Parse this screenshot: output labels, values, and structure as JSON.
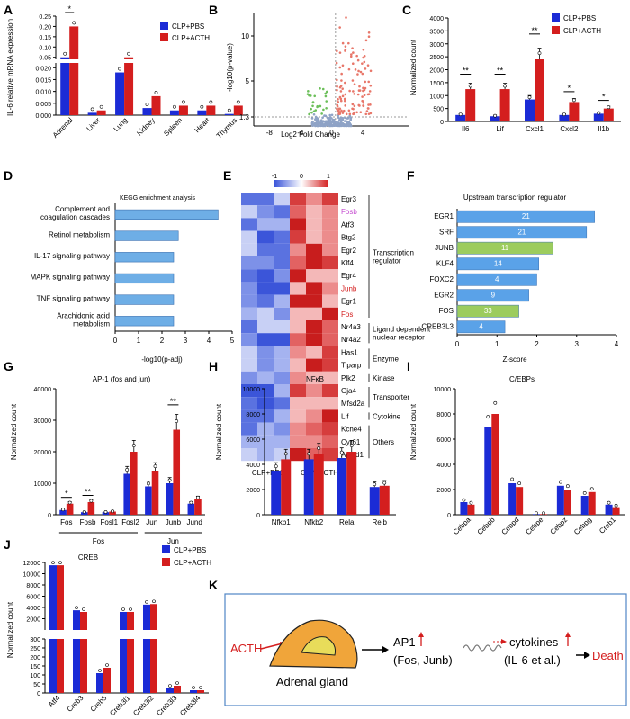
{
  "colors": {
    "pbs": "#1b2bd6",
    "acth": "#d41e1e",
    "kegg": "#6eaee6",
    "tfblue": "#5aa2e8",
    "tfgreen": "#9ccc5e",
    "volcano_grey": "#8fa3c6",
    "volcano_red": "#e8776a",
    "volcano_green": "#6cbf5a"
  },
  "panels": {
    "A": "A",
    "B": "B",
    "C": "C",
    "D": "D",
    "E": "E",
    "F": "F",
    "G": "G",
    "H": "H",
    "I": "I",
    "J": "J",
    "K": "K"
  },
  "legend": {
    "pbs": "CLP+PBS",
    "acth": "CLP+ACTH"
  },
  "sig": {
    "s1": "*",
    "s2": "**"
  },
  "chart_data": [
    {
      "id": "A",
      "type": "bar",
      "ylabel": "IL-6 relative mRNA expression",
      "categories": [
        "Adrenal",
        "Liver",
        "Lung",
        "Kidney",
        "Spleen",
        "Heart",
        "Thymus"
      ],
      "series": [
        {
          "name": "CLP+PBS",
          "values": [
            0.05,
            0.001,
            0.018,
            0.003,
            0.002,
            0.002,
            0.0005
          ]
        },
        {
          "name": "CLP+ACTH",
          "values": [
            0.2,
            0.002,
            0.05,
            0.008,
            0.004,
            0.004,
            0.004
          ]
        }
      ],
      "yticks": [
        "0.000",
        "0.005",
        "0.010",
        "0.015",
        "0.020",
        "0.05",
        "0.10",
        "0.15",
        "0.20",
        "0.25"
      ],
      "significance": [
        {
          "category": "Adrenal",
          "label": "*"
        }
      ]
    },
    {
      "id": "B",
      "type": "scatter",
      "xlabel": "Log2 Fold Change",
      "ylabel": "-log10(p-value)",
      "xticks": [
        "-8",
        "-4",
        "0",
        "4"
      ],
      "yticks": [
        "1.3",
        "5",
        "10"
      ],
      "threshold": 1.3
    },
    {
      "id": "C",
      "type": "bar",
      "ylabel": "Normalized count",
      "categories": [
        "Il6",
        "Lif",
        "Cxcl1",
        "Cxcl2",
        "Il1b"
      ],
      "series": [
        {
          "name": "CLP+PBS",
          "values": [
            250,
            200,
            850,
            250,
            300
          ]
        },
        {
          "name": "CLP+ACTH",
          "values": [
            1250,
            1250,
            2400,
            750,
            500
          ]
        }
      ],
      "yticks": [
        "0",
        "500",
        "1000",
        "1500",
        "2000",
        "2500",
        "3000",
        "3500",
        "4000"
      ],
      "ylim": [
        0,
        4000
      ],
      "significance": [
        "**",
        "**",
        "**",
        "*",
        "*"
      ]
    },
    {
      "id": "D",
      "type": "bar",
      "title": "KEGG enrichment analysis",
      "xlabel": "-log10(p-adj)",
      "categories": [
        "Complement and coagulation cascades",
        "Retinol metabolism",
        "IL-17 signaling pathway",
        "MAPK signaling pathway",
        "TNF signaling pathway",
        "Arachidonic acid metabolism"
      ],
      "values": [
        4.4,
        2.7,
        2.5,
        2.5,
        2.5,
        2.5
      ],
      "xticks": [
        "0",
        "1",
        "2",
        "3",
        "4",
        "5"
      ],
      "xlim": [
        0,
        5
      ]
    },
    {
      "id": "E",
      "type": "heatmap",
      "scale": [
        "-1",
        "0",
        "1"
      ],
      "genes": [
        "Egr3",
        "Fosb",
        "Atf3",
        "Btg2",
        "Egr2",
        "Klf4",
        "Egr4",
        "Junb",
        "Egr1",
        "Fos",
        "Nr4a3",
        "Nr4a2",
        "Has1",
        "Tiparp",
        "Plk2",
        "Gja4",
        "Mfsd2a",
        "Lif",
        "Kcne4",
        "Cyr61",
        "Apold1"
      ],
      "groups": [
        {
          "label": "Transcription regulator"
        },
        {
          "label": "Ligand dependent nuclear receptor"
        },
        {
          "label": "Enzyme"
        },
        {
          "label": "Kinase"
        },
        {
          "label": "Transporter"
        },
        {
          "label": "Cytokine"
        },
        {
          "label": "Others"
        }
      ],
      "xlabels": [
        "CLP+PBS",
        "CLP+ACTH"
      ]
    },
    {
      "id": "F",
      "type": "bar",
      "title": "Upstream transcription regulator",
      "xlabel": "Z-score",
      "categories": [
        "EGR1",
        "SRF",
        "JUNB",
        "KLF4",
        "FOXC2",
        "EGR2",
        "FOS",
        "CREB3L3"
      ],
      "values": [
        3.45,
        3.25,
        2.4,
        2.05,
        2.0,
        1.8,
        1.55,
        1.2
      ],
      "labels": [
        "21",
        "21",
        "11",
        "14",
        "4",
        "9",
        "33",
        "4"
      ],
      "xticks": [
        "0",
        "1",
        "2",
        "3",
        "4"
      ],
      "xlim": [
        0,
        4
      ]
    },
    {
      "id": "G",
      "type": "bar",
      "title": "AP-1 (fos and jun)",
      "ylabel": "Normalized count",
      "categories": [
        "Fos",
        "Fosb",
        "Fosl1",
        "Fosl2",
        "Jun",
        "Junb",
        "Jund"
      ],
      "series": [
        {
          "name": "CLP+PBS",
          "values": [
            1500,
            800,
            800,
            13000,
            9000,
            10000,
            3500
          ]
        },
        {
          "name": "CLP+ACTH",
          "values": [
            3500,
            4000,
            1000,
            20000,
            14000,
            27000,
            5000
          ]
        }
      ],
      "yticks": [
        "0",
        "10000",
        "20000",
        "30000",
        "40000"
      ],
      "ylim": [
        0,
        40000
      ],
      "groups": [
        "Fos",
        "Jun"
      ],
      "significance": [
        "*",
        "**",
        "**"
      ]
    },
    {
      "id": "H",
      "type": "bar",
      "title": "NFκB",
      "ylabel": "Normalized count",
      "categories": [
        "Nfkb1",
        "Nfkb2",
        "Rela",
        "Relb"
      ],
      "series": [
        {
          "name": "CLP+PBS",
          "values": [
            3500,
            4400,
            4500,
            2200
          ]
        },
        {
          "name": "CLP+ACTH",
          "values": [
            4400,
            4800,
            5000,
            2300
          ]
        }
      ],
      "yticks": [
        "0",
        "2000",
        "4000",
        "6000",
        "8000",
        "10000"
      ],
      "ylim": [
        0,
        10000
      ]
    },
    {
      "id": "I",
      "type": "bar",
      "title": "C/EBPs",
      "ylabel": "Normalized count",
      "categories": [
        "Cebpa",
        "Cebpb",
        "Cebpd",
        "Cebpe",
        "Cebpz",
        "Cebpg",
        "Creb1"
      ],
      "series": [
        {
          "name": "CLP+PBS",
          "values": [
            1000,
            7000,
            2500,
            50,
            2300,
            1500,
            800
          ]
        },
        {
          "name": "CLP+ACTH",
          "values": [
            800,
            8000,
            2200,
            50,
            2000,
            1800,
            600
          ]
        }
      ],
      "yticks": [
        "0",
        "2000",
        "4000",
        "6000",
        "8000",
        "10000"
      ],
      "ylim": [
        0,
        10000
      ]
    },
    {
      "id": "J",
      "type": "bar",
      "title": "CREB",
      "ylabel": "Normalized count",
      "categories": [
        "Atf4",
        "Creb3",
        "Creb5",
        "Creb3l1",
        "Creb3l2",
        "Creb3l3",
        "Creb3l4"
      ],
      "series": [
        {
          "name": "CLP+PBS",
          "values": [
            11500,
            3500,
            110,
            3200,
            4500,
            25,
            15
          ]
        },
        {
          "name": "CLP+ACTH",
          "values": [
            11500,
            3200,
            140,
            3200,
            4600,
            40,
            15
          ]
        }
      ],
      "yticks": [
        "0",
        "50",
        "100",
        "150",
        "200",
        "250",
        "300",
        "2000",
        "4000",
        "6000",
        "8000",
        "10000",
        "12000"
      ]
    }
  ],
  "schematic": {
    "acth": "ACTH",
    "gland": "Adrenal gland",
    "ap1": "AP1",
    "fos_junb": "(Fos, Junb)",
    "cytokines": "cytokines",
    "il6": "(IL-6 et al.)",
    "death": "Death"
  }
}
